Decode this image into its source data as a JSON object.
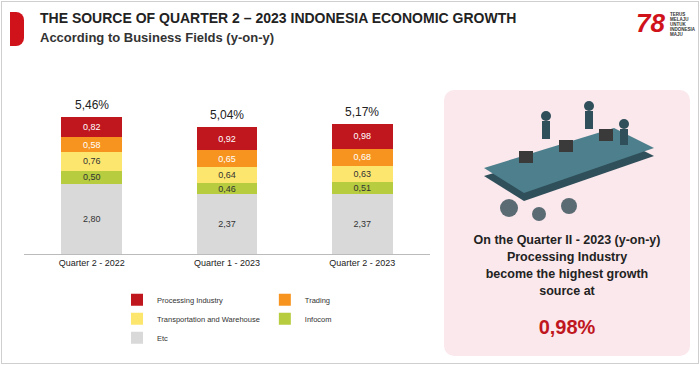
{
  "chart_data": {
    "type": "bar",
    "stacked": true,
    "title": "THE SOURCE OF QUARTER 2 – 2023 INDONESIA ECONOMIC GROWTH",
    "subtitle": "According to Business Fields (y-on-y)",
    "categories": [
      "Quarter 2 - 2022",
      "Quarter 1 - 2023",
      "Quarter 2 - 2023"
    ],
    "series": [
      {
        "name": "Etc",
        "color": "#d9d9d9",
        "values": [
          2.8,
          2.37,
          2.37
        ],
        "value_labels": [
          "2,80",
          "2,37",
          "2,37"
        ]
      },
      {
        "name": "Infocom",
        "color": "#b7cc3f",
        "values": [
          0.5,
          0.46,
          0.51
        ],
        "value_labels": [
          "0,50",
          "0,46",
          "0,51"
        ]
      },
      {
        "name": "Transportation and Warehouse",
        "color": "#fde66e",
        "values": [
          0.76,
          0.64,
          0.63
        ],
        "value_labels": [
          "0,76",
          "0,64",
          "0,63"
        ]
      },
      {
        "name": "Trading",
        "color": "#f79420",
        "values": [
          0.58,
          0.65,
          0.68
        ],
        "value_labels": [
          "0,58",
          "0,65",
          "0,68"
        ]
      },
      {
        "name": "Processing Industry",
        "color": "#c0161e",
        "values": [
          0.82,
          0.92,
          0.98
        ],
        "value_labels": [
          "0,82",
          "0,92",
          "0,98"
        ]
      }
    ],
    "totals": {
      "values": [
        5.46,
        5.04,
        5.17
      ],
      "value_labels": [
        "5,46%",
        "5,04%",
        "5,17%"
      ]
    },
    "ylim": [
      0,
      6.2
    ],
    "tick_labels": "x",
    "data_labels": true,
    "legend": "bottom",
    "grid": false
  },
  "panel": {
    "lines": [
      "On the Quarter II - 2023 (y-on-y)",
      "Processing Industry",
      "become the highest growth",
      "source at"
    ],
    "highlight": "0,98%"
  },
  "logo": {
    "number": "78",
    "lines": [
      "TERUS",
      "MELAJU",
      "UNTUK",
      "INDONESIA",
      "MAJU"
    ]
  }
}
